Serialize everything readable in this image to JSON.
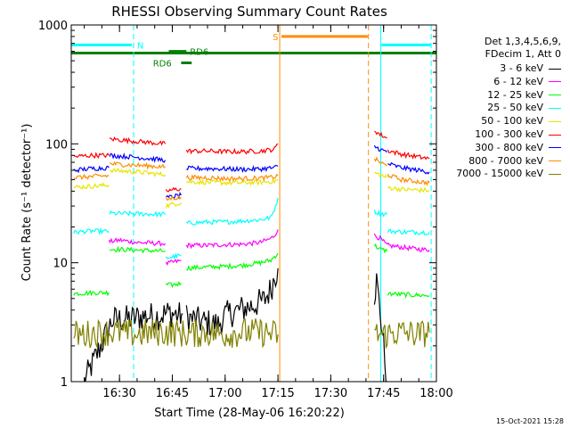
{
  "chart_data": {
    "type": "line",
    "title": "RHESSI Observing Summary Count Rates",
    "xlabel": "Start Time (28-May-06 16:20:22)",
    "ylabel": "Count Rate (s⁻¹ detector⁻¹)",
    "yscale": "log",
    "ylim": [
      1,
      1000
    ],
    "xlim_minutes": [
      16.3,
      120
    ],
    "x_ticks": [
      {
        "min": 30,
        "label": "16:30"
      },
      {
        "min": 45,
        "label": "16:45"
      },
      {
        "min": 60,
        "label": "17:00"
      },
      {
        "min": 75,
        "label": "17:15"
      },
      {
        "min": 90,
        "label": "17:30"
      },
      {
        "min": 105,
        "label": "17:45"
      },
      {
        "min": 120,
        "label": "18:00"
      }
    ],
    "y_ticks": [
      {
        "value": 1,
        "label": "1"
      },
      {
        "value": 10,
        "label": "10"
      },
      {
        "value": 100,
        "label": "100"
      },
      {
        "value": 1000,
        "label": "1000"
      }
    ],
    "legend_header": [
      "Det 1,3,4,5,6,9,",
      "FDecim 1, Att 0"
    ],
    "series": [
      {
        "name": "3 - 6 keV",
        "color": "#000000",
        "segments": [
          {
            "t": [
              20,
              24,
              28,
              34,
              38,
              40,
              44,
              47,
              48
            ],
            "v": [
              1.0,
              1.8,
              3.3,
              3.4,
              3.6,
              3.5,
              3.8,
              3.6,
              3.7
            ]
          },
          {
            "t": [
              49,
              53,
              58,
              60,
              64,
              68,
              71,
              73,
              74,
              75
            ],
            "v": [
              3.5,
              3.2,
              3.0,
              3.6,
              4.0,
              4.4,
              4.8,
              6.0,
              7.5,
              9.0
            ]
          },
          {
            "t": [
              102.4,
              103,
              104,
              106
            ],
            "v": [
              5.5,
              7.0,
              4.0,
              1.0
            ]
          }
        ]
      },
      {
        "name": "6 - 12 keV",
        "color": "#ff00ff",
        "segments": [
          {
            "t": [
              27,
              30,
              35,
              40,
              43
            ],
            "v": [
              15.0,
              15.5,
              14.8,
              14.6,
              14.5
            ]
          },
          {
            "t": [
              43.2,
              45,
              47.5
            ],
            "v": [
              9.8,
              10.1,
              10.4
            ]
          },
          {
            "t": [
              49,
              55,
              60,
              65,
              70,
              73,
              74,
              75
            ],
            "v": [
              14.0,
              14.0,
              14.2,
              14.3,
              14.8,
              16.0,
              17.0,
              19.0
            ]
          },
          {
            "t": [
              102.4,
              104,
              106,
              110,
              115,
              118
            ],
            "v": [
              17.0,
              16.0,
              14.0,
              13.5,
              13.0,
              12.8
            ]
          }
        ]
      },
      {
        "name": "12 - 25 keV",
        "color": "#00ff00",
        "segments": [
          {
            "t": [
              17,
              23,
              27
            ],
            "v": [
              5.5,
              5.6,
              5.6
            ]
          },
          {
            "t": [
              27.2,
              35,
              43
            ],
            "v": [
              13.0,
              12.8,
              12.5
            ]
          },
          {
            "t": [
              43.2,
              45,
              47.5
            ],
            "v": [
              6.5,
              6.5,
              6.7
            ]
          },
          {
            "t": [
              49,
              55,
              60,
              65,
              70,
              73,
              74,
              75
            ],
            "v": [
              9.0,
              9.2,
              9.3,
              9.5,
              10.0,
              10.5,
              11.2,
              12.0
            ]
          },
          {
            "t": [
              102.4,
              104,
              106
            ],
            "v": [
              14.0,
              13.0,
              12.5
            ]
          },
          {
            "t": [
              106.2,
              110,
              118
            ],
            "v": [
              5.5,
              5.4,
              5.3
            ]
          }
        ]
      },
      {
        "name": "25 - 50 keV",
        "color": "#00ffff",
        "segments": [
          {
            "t": [
              17,
              22,
              27
            ],
            "v": [
              18.0,
              18.5,
              18.3
            ]
          },
          {
            "t": [
              27.2,
              35,
              43
            ],
            "v": [
              26.0,
              25.8,
              25.5
            ]
          },
          {
            "t": [
              43.2,
              45,
              47.5
            ],
            "v": [
              11.0,
              11.2,
              11.5
            ]
          },
          {
            "t": [
              49,
              55,
              60,
              65,
              70,
              73,
              74,
              75
            ],
            "v": [
              21.5,
              22.0,
              22.0,
              22.5,
              23.0,
              24.0,
              28.0,
              35.0
            ]
          },
          {
            "t": [
              102.4,
              104,
              106
            ],
            "v": [
              27.0,
              26.0,
              25.5
            ]
          },
          {
            "t": [
              106.2,
              110,
              118
            ],
            "v": [
              18.5,
              18.2,
              18.0
            ]
          }
        ]
      },
      {
        "name": "50 - 100 keV",
        "color": "#e6e600",
        "segments": [
          {
            "t": [
              17,
              22,
              27
            ],
            "v": [
              43.0,
              44.0,
              45.0
            ]
          },
          {
            "t": [
              27.2,
              35,
              43
            ],
            "v": [
              60.0,
              58.0,
              55.0
            ]
          },
          {
            "t": [
              43.2,
              45,
              47.5
            ],
            "v": [
              30.0,
              31.0,
              32.0
            ]
          },
          {
            "t": [
              49,
              55,
              60,
              65,
              70,
              74,
              75
            ],
            "v": [
              48.0,
              47.5,
              47.0,
              47.0,
              47.5,
              48.5,
              50.0
            ]
          },
          {
            "t": [
              102.4,
              104,
              106
            ],
            "v": [
              57.0,
              55.0,
              52.0
            ]
          },
          {
            "t": [
              106.2,
              110,
              118
            ],
            "v": [
              43.0,
              41.5,
              40.5
            ]
          }
        ]
      },
      {
        "name": "100 - 300 keV",
        "color": "#ff0000",
        "segments": [
          {
            "t": [
              17,
              22,
              27
            ],
            "v": [
              78.0,
              80.0,
              80.0
            ]
          },
          {
            "t": [
              27.2,
              35,
              43
            ],
            "v": [
              110.0,
              105.0,
              100.0
            ]
          },
          {
            "t": [
              43.2,
              45,
              47.5
            ],
            "v": [
              40.0,
              41.0,
              42.0
            ]
          },
          {
            "t": [
              49,
              55,
              60,
              65,
              70,
              74,
              75
            ],
            "v": [
              87.0,
              87.0,
              86.0,
              86.0,
              87.0,
              90.0,
              100.0
            ]
          },
          {
            "t": [
              102.4,
              104,
              106
            ],
            "v": [
              130.0,
              120.0,
              112.0
            ]
          },
          {
            "t": [
              106.2,
              110,
              118
            ],
            "v": [
              88.0,
              82.0,
              75.0
            ]
          }
        ]
      },
      {
        "name": "300 - 800 keV",
        "color": "#0000ff",
        "segments": [
          {
            "t": [
              17,
              22,
              27
            ],
            "v": [
              60.0,
              62.0,
              63.0
            ]
          },
          {
            "t": [
              27.2,
              35,
              43
            ],
            "v": [
              80.0,
              77.0,
              73.0
            ]
          },
          {
            "t": [
              43.2,
              45,
              47.5
            ],
            "v": [
              35.0,
              36.0,
              37.0
            ]
          },
          {
            "t": [
              49,
              55,
              60,
              65,
              70,
              74,
              75
            ],
            "v": [
              62.0,
              62.0,
              61.5,
              61.0,
              61.5,
              63.0,
              65.0
            ]
          },
          {
            "t": [
              102.4,
              104,
              106
            ],
            "v": [
              95.0,
              90.0,
              85.0
            ]
          },
          {
            "t": [
              106.2,
              110,
              118
            ],
            "v": [
              68.0,
              63.0,
              58.0
            ]
          }
        ]
      },
      {
        "name": "800 - 7000 keV",
        "color": "#ff8c00",
        "segments": [
          {
            "t": [
              17,
              22,
              27
            ],
            "v": [
              52.0,
              53.0,
              54.0
            ]
          },
          {
            "t": [
              27.2,
              35,
              43
            ],
            "v": [
              68.0,
              66.0,
              64.0
            ]
          },
          {
            "t": [
              43.2,
              45,
              47.5
            ],
            "v": [
              34.0,
              35.0,
              35.5
            ]
          },
          {
            "t": [
              49,
              55,
              60,
              65,
              70,
              74,
              75
            ],
            "v": [
              52.0,
              52.0,
              51.0,
              51.0,
              51.5,
              52.5,
              54.0
            ]
          },
          {
            "t": [
              102.4,
              104,
              106
            ],
            "v": [
              75.0,
              70.0,
              65.0
            ]
          },
          {
            "t": [
              106.2,
              110,
              118
            ],
            "v": [
              55.0,
              50.0,
              47.0
            ]
          }
        ]
      },
      {
        "name": "7000 - 15000 keV",
        "color": "#808000",
        "segments": [
          {
            "t": [
              17,
              20,
              25,
              30,
              35,
              40,
              45,
              50,
              55,
              60,
              65,
              70,
              75
            ],
            "v": [
              2.5,
              2.5,
              2.6,
              2.6,
              2.5,
              2.6,
              2.6,
              2.5,
              2.6,
              2.5,
              2.6,
              2.6,
              2.5
            ]
          },
          {
            "t": [
              102.4,
              106,
              110,
              115,
              118
            ],
            "v": [
              2.5,
              2.5,
              2.6,
              2.5,
              2.6
            ]
          }
        ]
      }
    ],
    "attenuator_lines": [
      {
        "min": 75.5,
        "color": "#ff8c00",
        "style": "solid"
      },
      {
        "min": 100.7,
        "color": "#ff8c00",
        "style": "dashed"
      }
    ],
    "night_lines": [
      {
        "min": 16.3,
        "color": "#00ffff",
        "style": "solid"
      },
      {
        "min": 104.2,
        "color": "#00ffff",
        "style": "solid"
      },
      {
        "min": 34.0,
        "color": "#00ffff",
        "style": "dashed"
      },
      {
        "min": 118.5,
        "color": "#00ffff",
        "style": "dashed"
      }
    ],
    "flag_bars": [
      {
        "label": "N",
        "t0": 16.3,
        "t1": 33.5,
        "value": 680,
        "color": "#00ffff",
        "label_t": 35.0
      },
      {
        "label": "",
        "t0": 104.4,
        "t1": 118.5,
        "value": 680,
        "color": "#00ffff",
        "label_t": null
      },
      {
        "label": "S",
        "t0": 76,
        "t1": 100.5,
        "value": 800,
        "color": "#ff8c00",
        "label_t": 73.5
      },
      {
        "label": "",
        "t0": 16.3,
        "t1": 120,
        "value": 580,
        "color": "#008000",
        "label_t": null
      },
      {
        "label": "RD6",
        "t0": 47.5,
        "t1": 50.5,
        "value": 480,
        "color": "#008000",
        "label_t": 39.5
      },
      {
        "label": "RD6",
        "t0": 44.0,
        "t1": 49.0,
        "value": 600,
        "color": "#008000",
        "label_t": 50.0
      }
    ]
  },
  "timestamp": "15-Oct-2021 15:28"
}
